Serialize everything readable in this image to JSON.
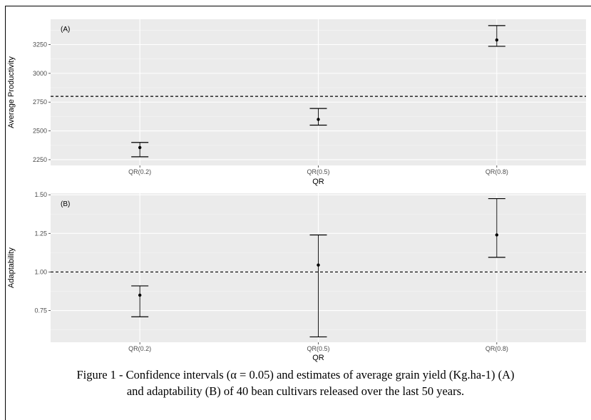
{
  "caption": {
    "line1": "Figure 1 - Confidence intervals (α = 0.05) and estimates of average grain yield (Kg.ha-1) (A)",
    "line2": "and adaptability (B) of 40 bean cultivars released over the last 50 years."
  },
  "chart_data": [
    {
      "type": "scatter",
      "panel_label": "(A)",
      "xlabel": "QR",
      "ylabel": "Average Productivity",
      "categories": [
        "QR(0.2)",
        "QR(0.5)",
        "QR(0.8)"
      ],
      "estimate": [
        2355,
        2600,
        3290
      ],
      "ci_lower": [
        2275,
        2550,
        3235
      ],
      "ci_upper": [
        2400,
        2695,
        3415
      ],
      "reference_line": 2800,
      "ylim": [
        2200,
        3470
      ],
      "yticks": [
        2250,
        2500,
        2750,
        3000,
        3250
      ],
      "ytick_labels": [
        "2250",
        "2500",
        "2750",
        "3000",
        "3250"
      ],
      "grid": true,
      "background": "#ebebeb"
    },
    {
      "type": "scatter",
      "panel_label": "(B)",
      "xlabel": "QR",
      "ylabel": "Adaptability",
      "categories": [
        "QR(0.2)",
        "QR(0.5)",
        "QR(0.8)"
      ],
      "estimate": [
        0.85,
        1.045,
        1.24
      ],
      "ci_lower": [
        0.71,
        0.58,
        1.095
      ],
      "ci_upper": [
        0.91,
        1.24,
        1.475
      ],
      "reference_line": 1.0,
      "ylim": [
        0.545,
        1.51
      ],
      "yticks": [
        0.75,
        1.0,
        1.25,
        1.5
      ],
      "ytick_labels": [
        "0.75",
        "1.00",
        "1.25",
        "1.50"
      ],
      "grid": true,
      "background": "#ebebeb"
    }
  ]
}
